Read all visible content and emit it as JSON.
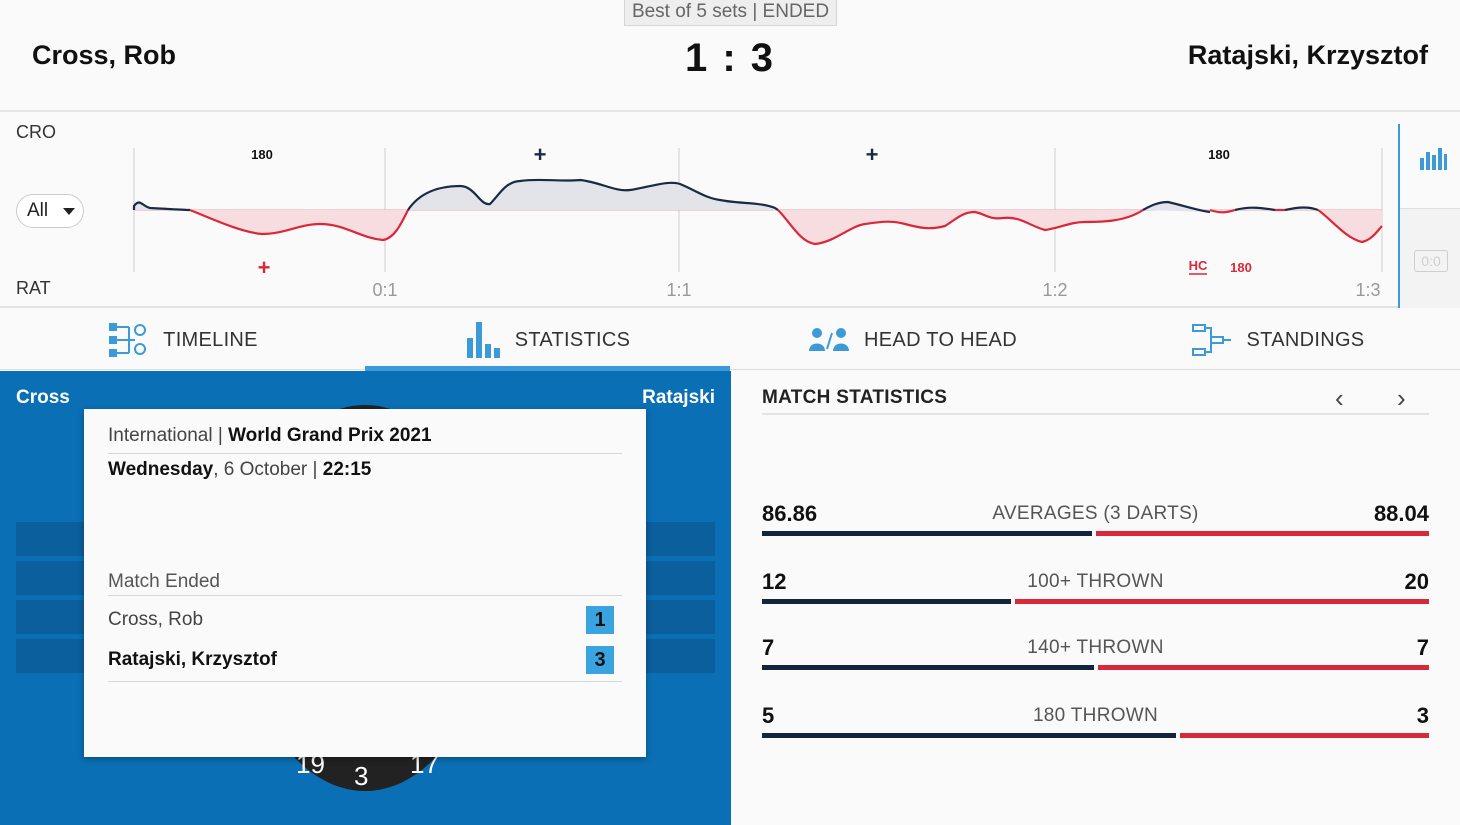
{
  "header": {
    "best_of": "Best of 5 sets | ENDED",
    "player_left": "Cross, Rob",
    "player_right": "Ratajski, Krzysztof",
    "score": "1 : 3"
  },
  "timeline": {
    "label_top": "CRO",
    "label_bottom": "RAT",
    "filter_value": "All",
    "set_markers": [
      "0:1",
      "1:1",
      "1:2",
      "1:3"
    ],
    "top_annotations": [
      "180",
      "+",
      "+",
      "180"
    ],
    "bottom_annotations": [
      "+",
      "HC",
      "180"
    ],
    "side_box": "0:0",
    "colors": {
      "cro_line": "#1a2a44",
      "rat_line": "#d9283a",
      "cro_fill": "#e2e4ea",
      "rat_fill": "#f7dde0"
    }
  },
  "tabs": [
    {
      "label": "TIMELINE",
      "icon": "timeline-icon"
    },
    {
      "label": "STATISTICS",
      "icon": "bar-chart-icon"
    },
    {
      "label": "HEAD TO HEAD",
      "icon": "people-icon"
    },
    {
      "label": "STANDINGS",
      "icon": "bracket-icon"
    }
  ],
  "active_tab": "STATISTICS",
  "left_panel": {
    "name_left": "Cross",
    "name_right": "Ratajski",
    "board_numbers": [
      "19",
      "3",
      "17"
    ]
  },
  "info_card": {
    "category": "International",
    "tournament": "World Grand Prix 2021",
    "day": "Wednesday",
    "date": ", 6 October",
    "time": "22:15",
    "status": "Match Ended",
    "players": [
      {
        "name": "Cross, Rob",
        "sets": "1",
        "winner": false
      },
      {
        "name": "Ratajski, Krzysztof",
        "sets": "3",
        "winner": true
      }
    ]
  },
  "match_statistics": {
    "title": "MATCH STATISTICS",
    "prev_label": "‹",
    "next_label": "›",
    "rows": [
      {
        "label": "AVERAGES (3 DARTS)",
        "left": "86.86",
        "right": "88.04",
        "left_share": 0.497
      },
      {
        "label": "100+ THROWN",
        "left": "12",
        "right": "20",
        "left_share": 0.375
      },
      {
        "label": "140+ THROWN",
        "left": "7",
        "right": "7",
        "left_share": 0.5
      },
      {
        "label": "180 THROWN",
        "left": "5",
        "right": "3",
        "left_share": 0.625
      }
    ]
  }
}
